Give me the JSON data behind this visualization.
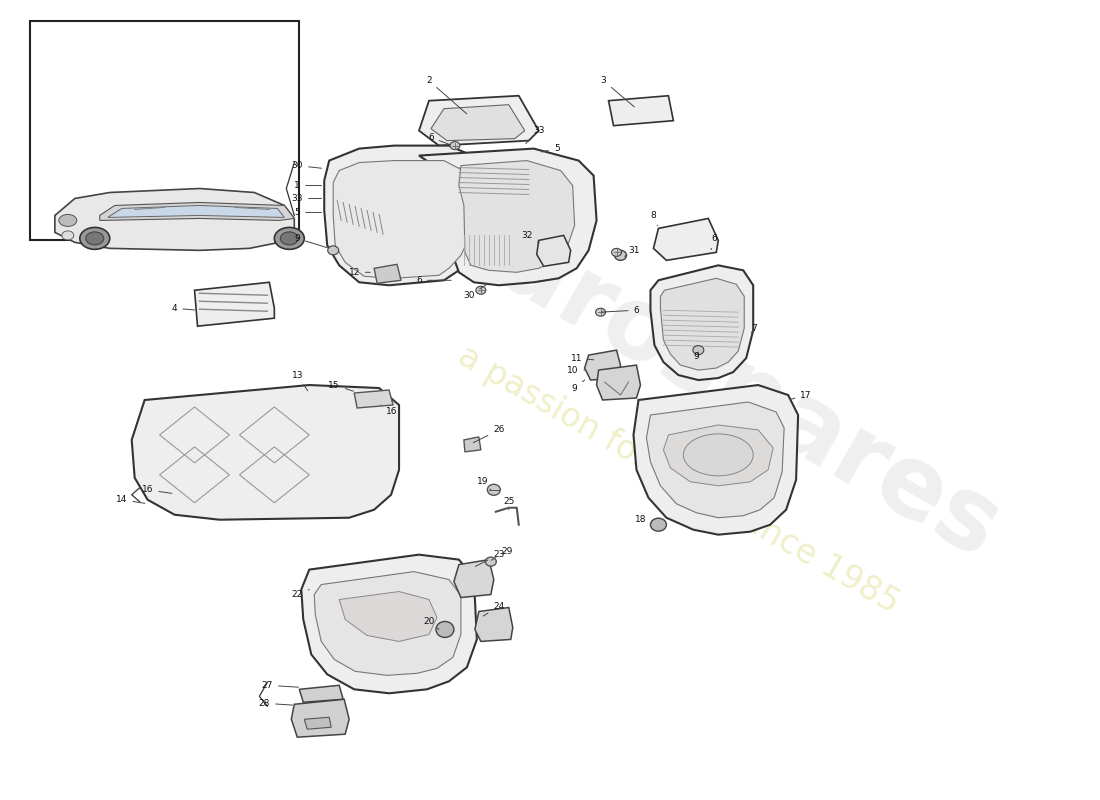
{
  "background_color": "#ffffff",
  "watermark1": "eurospares",
  "watermark2": "a passion for parts since 1985",
  "lc": "#333333",
  "fc_part": "#f0f0f0",
  "fc_inner": "#e0e0e0"
}
